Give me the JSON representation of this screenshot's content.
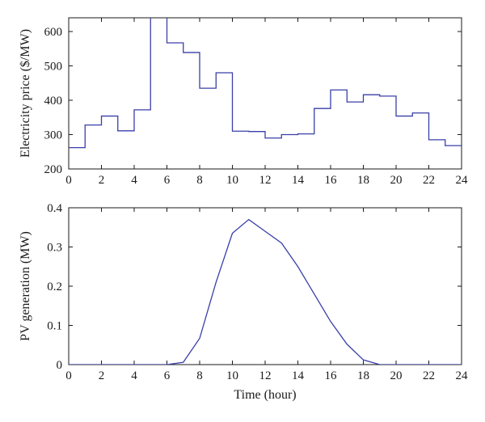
{
  "colors": {
    "line": "#3a3fa8",
    "axis": "#1a1a1a",
    "background": "#ffffff"
  },
  "chart_data": [
    {
      "type": "line",
      "style": "step",
      "ylabel": "Electricity price ($/MW)",
      "xlabel": "",
      "xlim": [
        0,
        24
      ],
      "ylim": [
        200,
        640
      ],
      "xticks": [
        0,
        2,
        4,
        6,
        8,
        10,
        12,
        14,
        16,
        18,
        20,
        22,
        24
      ],
      "yticks": [
        200,
        300,
        400,
        500,
        600
      ],
      "grid": false,
      "series": [
        {
          "x": [
            0,
            1,
            2,
            3,
            4,
            5,
            6,
            7,
            8,
            9,
            10,
            11,
            12,
            13,
            14,
            15,
            16,
            17,
            18,
            19,
            20,
            21,
            22,
            23
          ],
          "values": [
            262,
            328,
            354,
            311,
            372,
            650,
            567,
            539,
            435,
            480,
            310,
            309,
            290,
            300,
            302,
            376,
            430,
            395,
            416,
            412,
            354,
            363,
            285,
            268
          ]
        }
      ]
    },
    {
      "type": "line",
      "ylabel": "PV generation (MW)",
      "xlabel": "Time (hour)",
      "xlim": [
        0,
        24
      ],
      "ylim": [
        0,
        0.4
      ],
      "xticks": [
        0,
        2,
        4,
        6,
        8,
        10,
        12,
        14,
        16,
        18,
        20,
        22,
        24
      ],
      "yticks": [
        0,
        0.1,
        0.2,
        0.3,
        0.4
      ],
      "grid": false,
      "series": [
        {
          "x": [
            0,
            1,
            2,
            3,
            4,
            5,
            6,
            7,
            8,
            9,
            10,
            11,
            12,
            13,
            14,
            15,
            16,
            17,
            18,
            19,
            20,
            21,
            22,
            23,
            24
          ],
          "values": [
            0,
            0,
            0,
            0,
            0,
            0,
            0,
            0.006,
            0.067,
            0.21,
            0.335,
            0.37,
            0.34,
            0.31,
            0.25,
            0.18,
            0.11,
            0.052,
            0.012,
            0,
            0,
            0,
            0,
            0,
            0
          ]
        }
      ]
    }
  ]
}
